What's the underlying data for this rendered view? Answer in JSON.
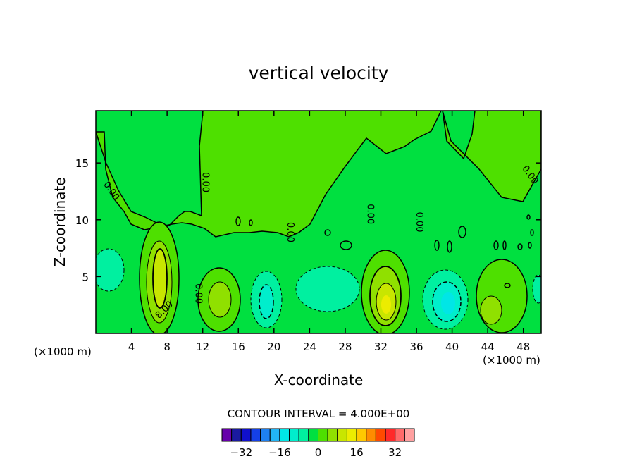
{
  "chart_data": {
    "type": "heatmap",
    "title": "vertical velocity",
    "xlabel": "X-coordinate",
    "ylabel": "Z-coordinate",
    "x_unit": "(×1000 m)",
    "z_unit": "(×1000 m)",
    "xlim": [
      0,
      50
    ],
    "ylim": [
      0,
      19.6
    ],
    "x_ticks": [
      4,
      8,
      12,
      16,
      20,
      24,
      28,
      32,
      36,
      40,
      44,
      48
    ],
    "x_tick_labels": [
      "4",
      "8",
      "12",
      "16",
      "20",
      "24",
      "28",
      "32",
      "36",
      "40",
      "44",
      "48"
    ],
    "y_ticks": [
      5,
      10,
      15
    ],
    "y_tick_labels": [
      "5",
      "10",
      "15"
    ],
    "contour_interval_text": "CONTOUR INTERVAL = 4.000E+00",
    "contour_labels": [
      {
        "text": "0.00",
        "x": 1.5,
        "z": 12.4
      },
      {
        "text": "0.00",
        "x": 12.0,
        "z": 13.3
      },
      {
        "text": "0.00",
        "x": 21.5,
        "z": 8.9
      },
      {
        "text": "0.00",
        "x": 30.5,
        "z": 10.5
      },
      {
        "text": "0.00",
        "x": 36.0,
        "z": 9.8
      },
      {
        "text": "0.00",
        "x": 48.5,
        "z": 13.8
      },
      {
        "text": "8.00",
        "x": 7.9,
        "z": 1.9
      },
      {
        "text": "0.00",
        "x": 11.2,
        "z": 3.5
      }
    ],
    "features": [
      {
        "kind": "updraft",
        "x": 7.0,
        "z": 5.0,
        "peak": 12
      },
      {
        "kind": "updraft",
        "x": 13.8,
        "z": 3.0,
        "peak": 8
      },
      {
        "kind": "downdraft",
        "x": 19.0,
        "z": 2.5,
        "peak": -8
      },
      {
        "kind": "downdraft",
        "x": 25.0,
        "z": 3.0,
        "peak": -4
      },
      {
        "kind": "updraft",
        "x": 32.5,
        "z": 3.0,
        "peak": 16
      },
      {
        "kind": "downdraft",
        "x": 39.0,
        "z": 2.5,
        "peak": -12
      },
      {
        "kind": "updraft",
        "x": 44.5,
        "z": 2.5,
        "peak": 4
      },
      {
        "kind": "downdraft",
        "x": 1.5,
        "z": 5.0,
        "peak": -4
      }
    ],
    "colorbar": {
      "levels": [
        -36,
        -32,
        -28,
        -24,
        -20,
        -16,
        -12,
        -8,
        -4,
        0,
        4,
        8,
        12,
        16,
        20,
        24,
        28,
        32,
        36
      ],
      "tick_labels": [
        "−32",
        "−16",
        "0",
        "16",
        "32"
      ],
      "tick_values": [
        -32,
        -16,
        0,
        16,
        32
      ],
      "colors": [
        "#6600aa",
        "#1a1aa0",
        "#1010cc",
        "#1540e6",
        "#1e80f0",
        "#22b4f5",
        "#00e6e6",
        "#00eecc",
        "#00f0a0",
        "#00e040",
        "#4ee000",
        "#90e000",
        "#c8e600",
        "#ecec00",
        "#ffc800",
        "#ff8c00",
        "#ff4a00",
        "#ff2a2a",
        "#ff6a6a",
        "#ffa0a0"
      ]
    }
  }
}
